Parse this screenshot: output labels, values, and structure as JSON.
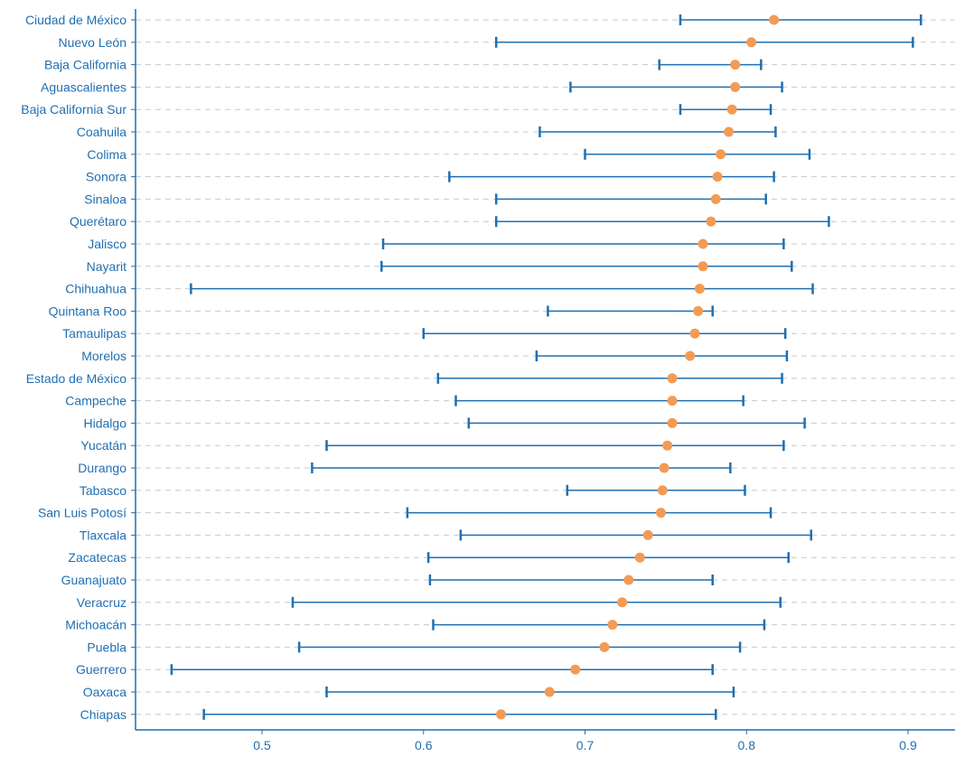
{
  "colors": {
    "interval": "#1f6fb2",
    "point": "#f39b55",
    "grid": "#c8c8c8",
    "axis": "#1f6fb2",
    "label": "#1f6fb2"
  },
  "chart_data": {
    "type": "scatter",
    "subtype": "point-with-interval",
    "title": "",
    "xlabel": "",
    "ylabel": "",
    "xlim": [
      0.42,
      0.93
    ],
    "xticks": [
      0.5,
      0.6,
      0.7,
      0.8,
      0.9
    ],
    "xtick_labels": [
      "0.5",
      "0.6",
      "0.7",
      "0.8",
      "0.9"
    ],
    "grid": "horizontal dashed per category",
    "legend": "none",
    "categories": [
      "Ciudad de México",
      "Nuevo León",
      "Baja California",
      "Aguascalientes",
      "Baja California Sur",
      "Coahuila",
      "Colima",
      "Sonora",
      "Sinaloa",
      "Querétaro",
      "Jalisco",
      "Nayarit",
      "Chihuahua",
      "Quintana Roo",
      "Tamaulipas",
      "Morelos",
      "Estado de México",
      "Campeche",
      "Hidalgo",
      "Yucatán",
      "Durango",
      "Tabasco",
      "San Luis Potosí",
      "Tlaxcala",
      "Zacatecas",
      "Guanajuato",
      "Veracruz",
      "Michoacán",
      "Puebla",
      "Guerrero",
      "Oaxaca",
      "Chiapas"
    ],
    "values": [
      0.817,
      0.803,
      0.793,
      0.793,
      0.791,
      0.789,
      0.784,
      0.782,
      0.781,
      0.778,
      0.773,
      0.773,
      0.771,
      0.77,
      0.768,
      0.765,
      0.754,
      0.754,
      0.754,
      0.751,
      0.749,
      0.748,
      0.747,
      0.739,
      0.734,
      0.727,
      0.723,
      0.717,
      0.712,
      0.694,
      0.678,
      0.648
    ],
    "lower": [
      0.759,
      0.645,
      0.746,
      0.691,
      0.759,
      0.672,
      0.7,
      0.616,
      0.645,
      0.645,
      0.575,
      0.574,
      0.456,
      0.677,
      0.6,
      0.67,
      0.609,
      0.62,
      0.628,
      0.54,
      0.531,
      0.689,
      0.59,
      0.623,
      0.603,
      0.604,
      0.519,
      0.606,
      0.523,
      0.444,
      0.54,
      0.464
    ],
    "upper": [
      0.908,
      0.903,
      0.809,
      0.822,
      0.815,
      0.818,
      0.839,
      0.817,
      0.812,
      0.851,
      0.823,
      0.828,
      0.841,
      0.779,
      0.824,
      0.825,
      0.822,
      0.798,
      0.836,
      0.823,
      0.79,
      0.799,
      0.815,
      0.84,
      0.826,
      0.779,
      0.821,
      0.811,
      0.796,
      0.779,
      0.792,
      0.781
    ]
  }
}
